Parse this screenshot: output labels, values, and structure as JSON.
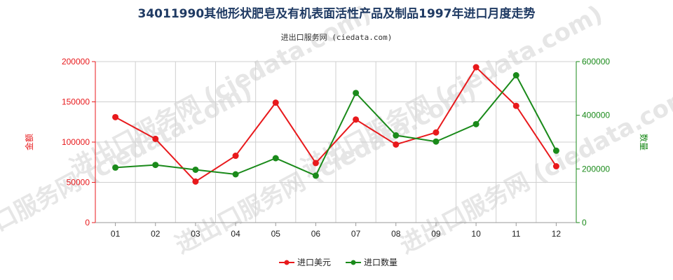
{
  "watermark": "进出口服务网 (ciedata.com)",
  "chart_data": {
    "type": "line",
    "title": "34011990其他形状肥皂及有机表面活性产品及制品1997年进口月度走势",
    "subtitle": "进出口服务网 (ciedata.com)",
    "categories": [
      "01",
      "02",
      "03",
      "04",
      "05",
      "06",
      "07",
      "08",
      "09",
      "10",
      "11",
      "12"
    ],
    "y_left": {
      "label": "金额",
      "ylim": [
        0,
        200000
      ],
      "ticks": [
        "0",
        "50000",
        "100000",
        "150000",
        "200000"
      ],
      "color": "#e8191c"
    },
    "y_right": {
      "label": "数量",
      "ylim": [
        0,
        600000
      ],
      "ticks": [
        "0",
        "200000",
        "400000",
        "600000"
      ],
      "color": "#1a8a1a"
    },
    "grid": true,
    "legend_position": "bottom",
    "series": [
      {
        "name": "进口美元",
        "axis": "left",
        "color": "#e8191c",
        "values": [
          131000,
          104000,
          51000,
          83000,
          149000,
          74000,
          128000,
          97000,
          112000,
          193000,
          145000,
          70000
        ]
      },
      {
        "name": "进口数量",
        "axis": "right",
        "color": "#1a8a1a",
        "values": [
          205000,
          215000,
          197000,
          180000,
          240000,
          175000,
          483000,
          325000,
          302000,
          367000,
          549000,
          268000
        ]
      }
    ]
  }
}
